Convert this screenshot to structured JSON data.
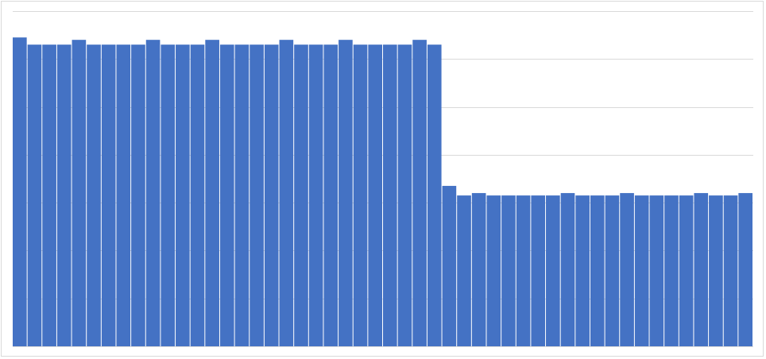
{
  "chart_data": {
    "type": "bar",
    "title": "",
    "xlabel": "",
    "ylabel": "",
    "ylim": [
      0,
      140
    ],
    "gridline_step": 20,
    "grid": true,
    "legend": "none",
    "bar_color": "#4472C4",
    "grid_color": "#d9d9d9",
    "values": [
      129,
      126,
      126,
      126,
      128,
      126,
      126,
      126,
      126,
      128,
      126,
      126,
      126,
      128,
      126,
      126,
      126,
      126,
      128,
      126,
      126,
      126,
      128,
      126,
      126,
      126,
      126,
      128,
      126,
      67,
      63,
      64,
      63,
      63,
      63,
      63,
      63,
      64,
      63,
      63,
      63,
      64,
      63,
      63,
      63,
      63,
      64,
      63,
      63,
      64
    ]
  }
}
